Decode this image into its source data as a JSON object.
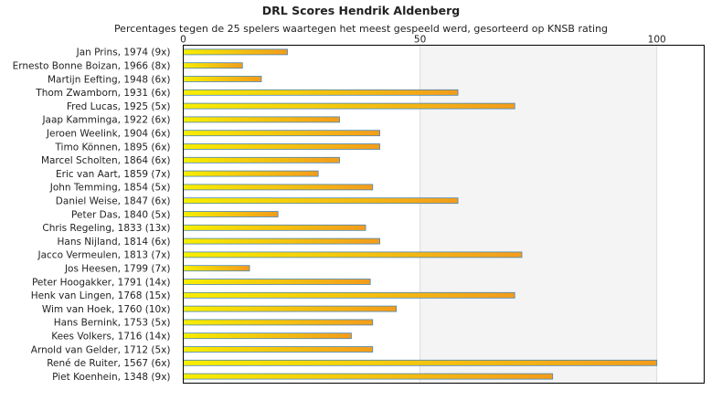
{
  "chart_data": {
    "type": "bar",
    "orientation": "horizontal",
    "title": "DRL Scores Hendrik Aldenberg",
    "subtitle": "Percentages tegen de 25 spelers waartegen het meest gespeeld werd, gesorteerd op KNSB rating",
    "xlim": [
      0,
      110
    ],
    "xticks": [
      0,
      50,
      100
    ],
    "grid": true,
    "colors": {
      "bar_start": "#f7ee00",
      "bar_end": "#f39c1c",
      "bar_border": "#4a86b4",
      "band_a": "#ffffff",
      "band_b": "#f4f4f4"
    },
    "categories": [
      "Jan Prins, 1974 (9x)",
      "Ernesto Bonne Boizan, 1966 (8x)",
      "Martijn Eefting, 1948 (6x)",
      "Thom Zwamborn, 1931 (6x)",
      "Fred Lucas, 1925 (5x)",
      "Jaap Kamminga, 1922 (6x)",
      "Jeroen Weelink, 1904 (6x)",
      "Timo Können, 1895 (6x)",
      "Marcel Scholten, 1864 (6x)",
      "Eric van Aart, 1859 (7x)",
      "John Temming, 1854 (5x)",
      "Daniel Weise, 1847 (6x)",
      "Peter Das, 1840 (5x)",
      "Chris Regeling, 1833 (13x)",
      "Hans Nijland, 1814 (6x)",
      "Jacco Vermeulen, 1813 (7x)",
      "Jos Heesen, 1799 (7x)",
      "Peter Hoogakker, 1791 (14x)",
      "Henk van Lingen, 1768 (15x)",
      "Wim van Hoek, 1760 (10x)",
      "Hans Bernink, 1753 (5x)",
      "Kees Volkers, 1716 (14x)",
      "Arnold van Gelder, 1712 (5x)",
      "René de Ruiter, 1567 (6x)",
      "Piet Koenhein, 1348 (9x)"
    ],
    "values": [
      22,
      12.5,
      16.5,
      58,
      70,
      33,
      41.5,
      41.5,
      33,
      28.5,
      40,
      58,
      20,
      38.5,
      41.5,
      71.5,
      14,
      39.5,
      70,
      45,
      40,
      35.5,
      40,
      100,
      78
    ]
  }
}
